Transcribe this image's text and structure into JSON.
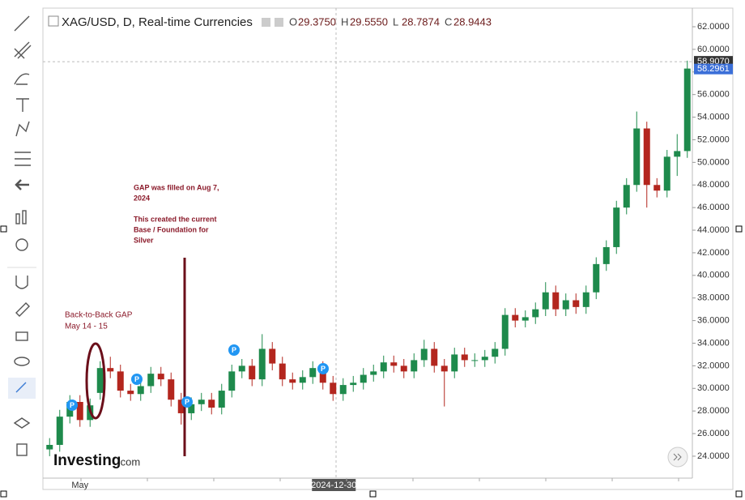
{
  "chart_data": {
    "type": "candlestick",
    "legend_title": "XAG/USD, D, Real-time Currencies",
    "ohlc_header": [
      {
        "prefix": "O",
        "value": "29.3750"
      },
      {
        "prefix": "H",
        "value": "29.5550"
      },
      {
        "prefix": "L",
        "value": "28.7874"
      },
      {
        "prefix": "C",
        "value": "28.9443"
      }
    ],
    "categories": [
      null,
      null,
      null,
      "May",
      null,
      null,
      null,
      null,
      null,
      null,
      null,
      null,
      null,
      null,
      null,
      null,
      null,
      null,
      null,
      null,
      null,
      null,
      null,
      null,
      null,
      null,
      null,
      null,
      "2024-12-30",
      null,
      null,
      null,
      null,
      null,
      null,
      null,
      null,
      null,
      null,
      null,
      null,
      null,
      null,
      null,
      null,
      null,
      null,
      null,
      null,
      null,
      null,
      null,
      null,
      null,
      null,
      null,
      null,
      null,
      null,
      null,
      null,
      null,
      null,
      null
    ],
    "open": [
      24.6,
      25,
      27.5,
      28.8,
      27.2,
      29.6,
      31.8,
      31.5,
      29.8,
      29.5,
      30.2,
      31.3,
      30.8,
      29.0,
      27.8,
      28.6,
      29.0,
      28.3,
      29.8,
      31.5,
      32.0,
      30.8,
      33.5,
      32.2,
      30.8,
      30.5,
      31.0,
      31.8,
      30.5,
      29.5,
      30.3,
      30.5,
      31.2,
      31.5,
      32.3,
      32.0,
      31.5,
      32.5,
      33.5,
      32.0,
      31.5,
      33.0,
      32.5,
      32.5,
      32.8,
      33.5,
      36.5,
      36.0,
      36.3,
      37.0,
      38.5,
      37.0,
      37.8,
      37.2,
      38.5,
      41.0,
      42.5,
      46.0,
      48.0,
      53.0,
      48.0,
      47.5,
      50.5,
      51.0
    ],
    "high": [
      25.6,
      28.1,
      29.4,
      29.4,
      29.1,
      32.4,
      32.8,
      32.1,
      30.4,
      30.8,
      31.9,
      31.9,
      31.4,
      29.6,
      29.2,
      29.6,
      29.6,
      30.4,
      32.1,
      32.6,
      32.6,
      34.8,
      34.1,
      32.8,
      31.4,
      31.6,
      32.4,
      32.4,
      31.1,
      30.9,
      31.1,
      31.8,
      32.1,
      32.9,
      32.9,
      32.6,
      33.1,
      34.3,
      34.1,
      32.6,
      33.6,
      33.6,
      33.1,
      33.4,
      34.1,
      37.1,
      37.1,
      36.9,
      37.6,
      39.4,
      39.1,
      38.4,
      38.4,
      39.1,
      41.6,
      43.1,
      46.6,
      48.6,
      54.5,
      53.6,
      48.6,
      51.1,
      52.5,
      59.0
    ],
    "low": [
      24.0,
      24.4,
      26.9,
      26.6,
      26.6,
      29.0,
      30.9,
      29.2,
      28.9,
      28.9,
      29.6,
      30.2,
      28.4,
      26.8,
      27.2,
      28.0,
      27.7,
      27.7,
      29.2,
      30.9,
      30.2,
      30.2,
      31.6,
      30.2,
      29.9,
      29.9,
      30.4,
      29.9,
      28.9,
      28.9,
      29.7,
      29.9,
      30.6,
      30.9,
      31.4,
      30.9,
      30.9,
      31.9,
      31.4,
      28.4,
      30.9,
      31.9,
      31.9,
      31.9,
      32.2,
      32.9,
      35.4,
      35.4,
      35.7,
      36.4,
      36.4,
      36.4,
      36.6,
      36.6,
      37.9,
      40.4,
      41.9,
      45.4,
      47.4,
      46.0,
      46.9,
      46.9,
      48.8,
      50.4
    ],
    "close": [
      25,
      27.5,
      28.8,
      27.2,
      28.5,
      31.8,
      31.5,
      29.8,
      29.5,
      30.2,
      31.3,
      30.8,
      29.0,
      27.8,
      28.6,
      29.0,
      28.3,
      29.8,
      31.5,
      32.0,
      30.8,
      33.5,
      32.2,
      30.8,
      30.5,
      31.0,
      31.8,
      30.5,
      29.5,
      30.3,
      30.5,
      31.2,
      31.5,
      32.3,
      32.0,
      31.5,
      32.5,
      33.5,
      32.0,
      31.5,
      33.0,
      32.5,
      32.5,
      32.8,
      33.5,
      36.5,
      36.0,
      36.3,
      37.0,
      38.5,
      37.0,
      37.8,
      37.2,
      38.5,
      41.0,
      42.5,
      46.0,
      48.0,
      53.0,
      48.0,
      47.5,
      50.5,
      51.0,
      58.3
    ],
    "up_color": "#1e8a4c",
    "down_color": "#b3261e",
    "ylim": [
      22.06,
      63.65
    ],
    "yticks": [
      {
        "value": 24,
        "label": "24.0000"
      },
      {
        "value": 26,
        "label": "26.0000"
      },
      {
        "value": 28,
        "label": "28.0000"
      },
      {
        "value": 30,
        "label": "30.0000"
      },
      {
        "value": 32,
        "label": "32.0000"
      },
      {
        "value": 34,
        "label": "34.0000"
      },
      {
        "value": 36,
        "label": "36.0000"
      },
      {
        "value": 38,
        "label": "38.0000"
      },
      {
        "value": 40,
        "label": "40.0000"
      },
      {
        "value": 42,
        "label": "42.0000"
      },
      {
        "value": 44,
        "label": "44.0000"
      },
      {
        "value": 46,
        "label": "46.0000"
      },
      {
        "value": 48,
        "label": "48.0000"
      },
      {
        "value": 50,
        "label": "50.0000"
      },
      {
        "value": 52,
        "label": "52.0000"
      },
      {
        "value": 54,
        "label": "54.0000"
      },
      {
        "value": 56,
        "label": "56.0000"
      },
      {
        "value": 58,
        "label": "58.0000"
      },
      {
        "value": 60,
        "label": "60.0000"
      },
      {
        "value": 62,
        "label": "62.0000"
      }
    ],
    "crosshair_price": {
      "value": 58.907,
      "label": "58.9070"
    },
    "last_price": {
      "value": 58.2961,
      "label": "58.2961"
    },
    "annotations": {
      "gap_label": [
        "Back-to-Back GAP",
        "May 14 - 15"
      ],
      "fill_note": [
        "GAP was filled on Aug 7,",
        "2024",
        "",
        "This created the current",
        "Base / Foundation for",
        "Silver"
      ]
    },
    "event_marker_label": "P",
    "logo": {
      "brand": "Investing",
      "suffix": ".com"
    }
  }
}
